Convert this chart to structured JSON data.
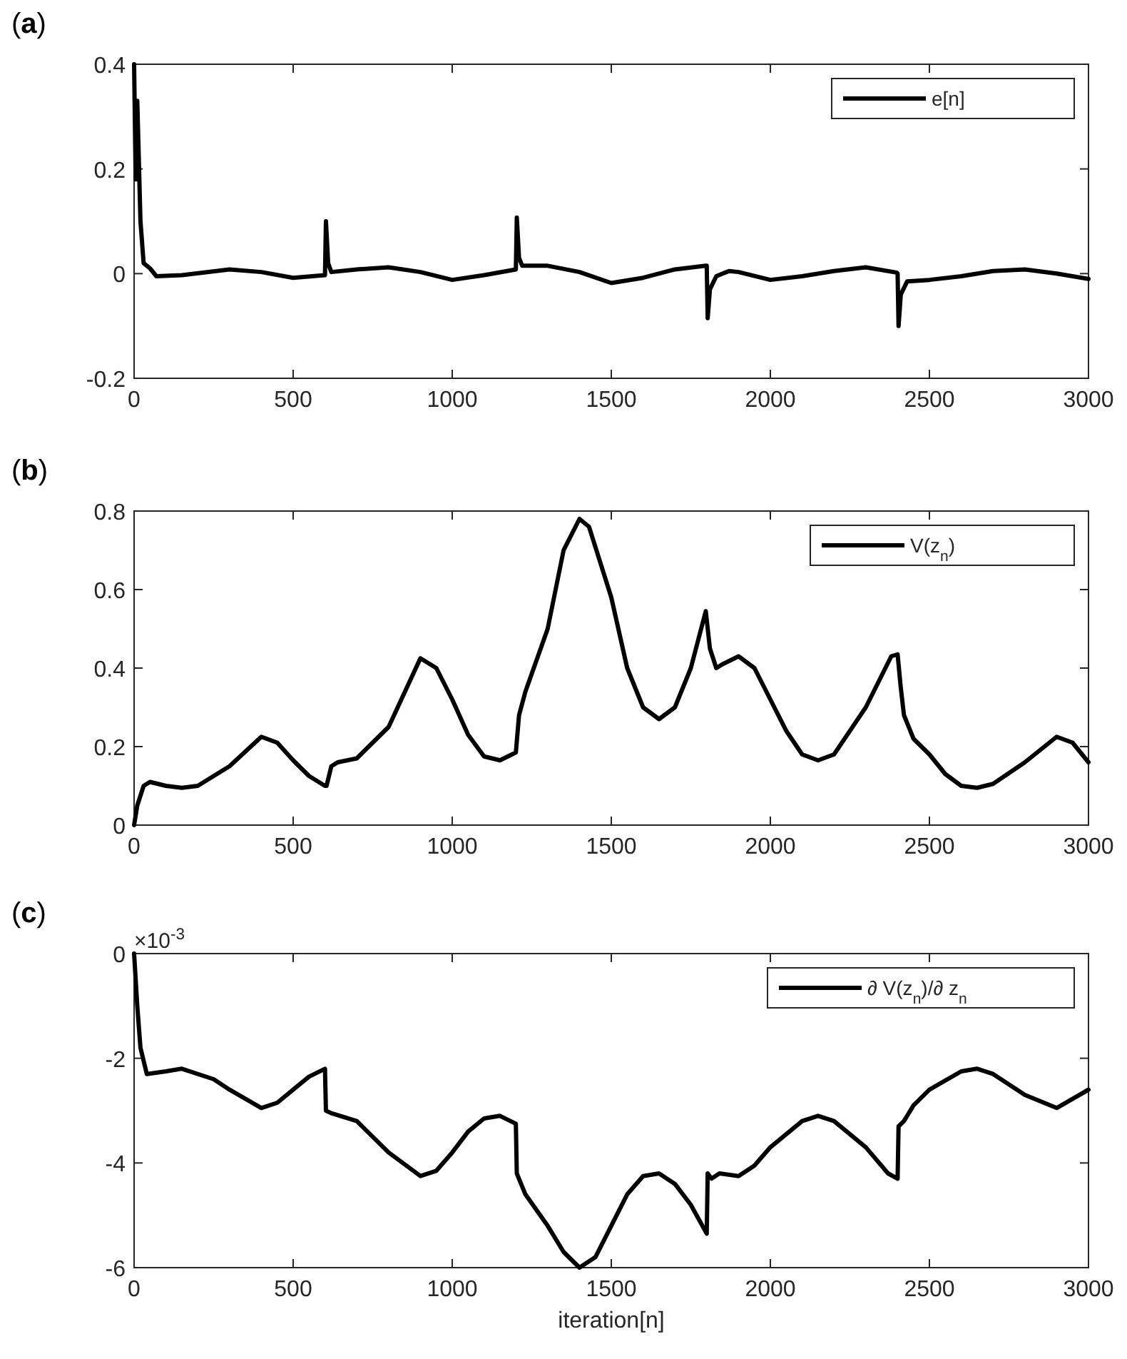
{
  "chart_data": [
    {
      "type": "line",
      "title": "(a)",
      "legend": "top right",
      "xlim": [
        0,
        3000
      ],
      "xticks": [
        0,
        500,
        1000,
        1500,
        2000,
        2500,
        3000
      ],
      "ylim": [
        -0.2,
        0.4
      ],
      "yticks": [
        -0.2,
        0,
        0.2,
        0.4
      ],
      "series": [
        {
          "name": "e[n]",
          "color": "#000000",
          "x": [
            0,
            5,
            10,
            20,
            30,
            50,
            70,
            150,
            300,
            400,
            500,
            600,
            603,
            610,
            620,
            700,
            800,
            900,
            1000,
            1100,
            1200,
            1203,
            1210,
            1220,
            1300,
            1400,
            1500,
            1600,
            1700,
            1797,
            1800,
            1803,
            1810,
            1830,
            1870,
            1900,
            2000,
            2100,
            2200,
            2300,
            2397,
            2400,
            2403,
            2410,
            2430,
            2500,
            2600,
            2700,
            2800,
            2900,
            3000
          ],
          "values": [
            0.4,
            0.18,
            0.33,
            0.1,
            0.02,
            0.01,
            -0.005,
            -0.003,
            0.008,
            0.003,
            -0.008,
            -0.003,
            0.1,
            0.02,
            0.003,
            0.008,
            0.012,
            0.003,
            -0.012,
            -0.003,
            0.008,
            0.107,
            0.03,
            0.015,
            0.015,
            0.003,
            -0.018,
            -0.008,
            0.008,
            0.015,
            0.015,
            -0.085,
            -0.03,
            -0.005,
            0.005,
            0.003,
            -0.012,
            -0.005,
            0.005,
            0.012,
            0.002,
            0,
            -0.1,
            -0.04,
            -0.015,
            -0.012,
            -0.005,
            0.005,
            0.008,
            0,
            -0.01
          ]
        }
      ]
    },
    {
      "type": "line",
      "title": "(b)",
      "legend": "top right",
      "xlim": [
        0,
        3000
      ],
      "xticks": [
        0,
        500,
        1000,
        1500,
        2000,
        2500,
        3000
      ],
      "ylim": [
        0,
        0.8
      ],
      "yticks": [
        0,
        0.2,
        0.4,
        0.6,
        0.8
      ],
      "series": [
        {
          "name": "V(z$_{n}$)",
          "color": "#000000",
          "x": [
            0,
            10,
            30,
            50,
            100,
            150,
            200,
            300,
            400,
            450,
            500,
            550,
            600,
            605,
            620,
            640,
            700,
            800,
            900,
            950,
            1000,
            1050,
            1100,
            1150,
            1200,
            1210,
            1230,
            1300,
            1350,
            1400,
            1430,
            1500,
            1550,
            1600,
            1650,
            1700,
            1750,
            1797,
            1810,
            1830,
            1850,
            1900,
            1950,
            2000,
            2050,
            2100,
            2150,
            2200,
            2300,
            2380,
            2400,
            2410,
            2420,
            2450,
            2500,
            2550,
            2600,
            2650,
            2700,
            2800,
            2900,
            2950,
            3000
          ],
          "values": [
            0,
            0.05,
            0.1,
            0.11,
            0.1,
            0.095,
            0.1,
            0.15,
            0.225,
            0.21,
            0.165,
            0.125,
            0.1,
            0.1,
            0.15,
            0.16,
            0.17,
            0.25,
            0.425,
            0.4,
            0.32,
            0.23,
            0.175,
            0.165,
            0.185,
            0.28,
            0.34,
            0.5,
            0.7,
            0.78,
            0.76,
            0.58,
            0.4,
            0.3,
            0.27,
            0.3,
            0.4,
            0.545,
            0.45,
            0.4,
            0.41,
            0.43,
            0.4,
            0.32,
            0.24,
            0.18,
            0.165,
            0.18,
            0.3,
            0.43,
            0.435,
            0.35,
            0.28,
            0.22,
            0.18,
            0.13,
            0.1,
            0.095,
            0.105,
            0.16,
            0.225,
            0.21,
            0.16
          ]
        }
      ]
    },
    {
      "type": "line",
      "title": "(c)",
      "legend": "top right",
      "xlabel": "iteration[n]",
      "annotations": [
        "×10$^{-3}$"
      ],
      "xlim": [
        0,
        3000
      ],
      "xticks": [
        0,
        500,
        1000,
        1500,
        2000,
        2500,
        3000
      ],
      "ylim": [
        -6,
        0
      ],
      "yticks": [
        -6,
        -4,
        -2,
        0
      ],
      "series": [
        {
          "name": "∂ V(z$_{n}$)/∂ z$_{n}$",
          "color": "#000000",
          "x": [
            0,
            10,
            20,
            40,
            100,
            150,
            250,
            300,
            400,
            450,
            500,
            550,
            600,
            603,
            620,
            700,
            800,
            900,
            950,
            1000,
            1050,
            1100,
            1150,
            1200,
            1203,
            1230,
            1300,
            1350,
            1400,
            1450,
            1500,
            1550,
            1600,
            1650,
            1700,
            1750,
            1800,
            1803,
            1815,
            1840,
            1900,
            1950,
            2000,
            2100,
            2150,
            2200,
            2300,
            2370,
            2400,
            2403,
            2420,
            2450,
            2500,
            2600,
            2650,
            2700,
            2800,
            2900,
            3000
          ],
          "values": [
            0,
            -1,
            -1.8,
            -2.3,
            -2.25,
            -2.2,
            -2.4,
            -2.6,
            -2.95,
            -2.85,
            -2.6,
            -2.35,
            -2.2,
            -3,
            -3.05,
            -3.2,
            -3.8,
            -4.25,
            -4.15,
            -3.8,
            -3.4,
            -3.15,
            -3.1,
            -3.25,
            -4.2,
            -4.6,
            -5.2,
            -5.7,
            -6,
            -5.8,
            -5.2,
            -4.6,
            -4.25,
            -4.2,
            -4.4,
            -4.8,
            -5.35,
            -4.2,
            -4.3,
            -4.2,
            -4.25,
            -4.05,
            -3.7,
            -3.2,
            -3.1,
            -3.2,
            -3.7,
            -4.2,
            -4.3,
            -3.3,
            -3.2,
            -2.9,
            -2.6,
            -2.25,
            -2.2,
            -2.3,
            -2.7,
            -2.95,
            -2.6
          ]
        }
      ]
    }
  ]
}
